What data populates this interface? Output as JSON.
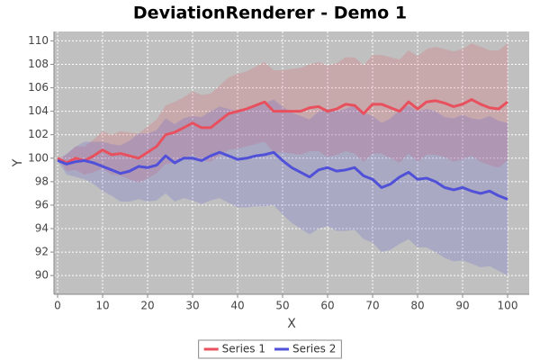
{
  "chart_data": {
    "type": "deviation",
    "title": "DeviationRenderer - Demo 1",
    "x_label": "X",
    "y_label": "Y",
    "x": [
      0,
      2,
      4,
      6,
      8,
      10,
      12,
      14,
      16,
      18,
      20,
      22,
      24,
      26,
      28,
      30,
      32,
      34,
      36,
      38,
      40,
      42,
      44,
      46,
      48,
      50,
      52,
      54,
      56,
      58,
      60,
      62,
      64,
      66,
      68,
      70,
      72,
      74,
      76,
      78,
      80,
      82,
      84,
      86,
      88,
      90,
      92,
      94,
      96,
      98,
      100
    ],
    "xlim": [
      -0.8,
      104.8
    ],
    "xticks": [
      0,
      10,
      20,
      30,
      40,
      50,
      60,
      70,
      80,
      90,
      100
    ],
    "ylim": [
      88.4,
      110.8
    ],
    "yticks": [
      90,
      92,
      94,
      96,
      98,
      100,
      102,
      104,
      106,
      108,
      110
    ],
    "grid": true,
    "legend": "bottom",
    "series": [
      {
        "name": "Series 1",
        "color": "#e8505e",
        "values": [
          100,
          99.6,
          100,
          99.8,
          100.2,
          100.7,
          100.3,
          100.4,
          100.2,
          100.0,
          100.5,
          101.0,
          102.0,
          102.2,
          102.6,
          103.0,
          102.6,
          102.6,
          103.2,
          103.8,
          104.0,
          104.2,
          104.5,
          104.8,
          104.0,
          104.0,
          104.0,
          104.0,
          104.3,
          104.4,
          104.0,
          104.2,
          104.6,
          104.5,
          103.8,
          104.6,
          104.6,
          104.3,
          104.0,
          104.8,
          104.2,
          104.8,
          104.9,
          104.7,
          104.4,
          104.6,
          105.0,
          104.6,
          104.3,
          104.2,
          104.8
        ],
        "lower": [
          100,
          98.9,
          99,
          98.6,
          98.8,
          99.1,
          98.6,
          98.5,
          98.2,
          97.9,
          98.3,
          98.7,
          99.5,
          99.6,
          100,
          100.3,
          99.8,
          99.7,
          100.2,
          100.7,
          100.8,
          101,
          101.2,
          101.4,
          100.5,
          100.5,
          100.4,
          100.3,
          100.6,
          100.6,
          100.1,
          100.3,
          100.6,
          100.4,
          99.7,
          100.4,
          100.4,
          100,
          99.6,
          100.4,
          99.7,
          100.3,
          100.3,
          100.1,
          99.7,
          99.9,
          100.2,
          99.7,
          99.4,
          99.2,
          99.8
        ],
        "upper": [
          100,
          100.3,
          101,
          101,
          101.6,
          102.3,
          102,
          102.3,
          102.2,
          102.1,
          102.7,
          103.3,
          104.5,
          104.8,
          105.2,
          105.7,
          105.4,
          105.5,
          106.2,
          106.9,
          107.2,
          107.4,
          107.8,
          108.2,
          107.5,
          107.5,
          107.6,
          107.7,
          108,
          108.2,
          107.9,
          108.1,
          108.6,
          108.6,
          107.9,
          108.8,
          108.8,
          108.6,
          108.4,
          109.2,
          108.7,
          109.3,
          109.5,
          109.3,
          109.1,
          109.3,
          109.8,
          109.5,
          109.2,
          109.2,
          109.8
        ]
      },
      {
        "name": "Series 2",
        "color": "#5050d8",
        "values": [
          99.8,
          99.5,
          99.7,
          99.8,
          99.6,
          99.3,
          99.0,
          98.7,
          98.9,
          99.3,
          99.2,
          99.4,
          100.2,
          99.6,
          100.0,
          100.0,
          99.8,
          100.2,
          100.5,
          100.2,
          99.9,
          100.0,
          100.2,
          100.3,
          100.5,
          99.8,
          99.2,
          98.8,
          98.4,
          99.0,
          99.2,
          98.9,
          99.0,
          99.2,
          98.5,
          98.2,
          97.5,
          97.8,
          98.4,
          98.8,
          98.2,
          98.3,
          98.0,
          97.5,
          97.3,
          97.5,
          97.2,
          97.0,
          97.2,
          96.8,
          96.5
        ],
        "lower": [
          99.8,
          98.6,
          98.4,
          98.2,
          97.8,
          97.2,
          96.8,
          96.3,
          96.3,
          96.5,
          96.3,
          96.4,
          97,
          96.3,
          96.6,
          96.4,
          96.1,
          96.4,
          96.6,
          96.2,
          95.8,
          95.8,
          95.9,
          95.9,
          96,
          95.2,
          94.5,
          94,
          93.5,
          94,
          94.2,
          93.8,
          93.8,
          93.9,
          93.1,
          92.8,
          92,
          92.2,
          92.7,
          93.1,
          92.4,
          92.4,
          92,
          91.5,
          91.2,
          91.3,
          91,
          90.7,
          90.8,
          90.4,
          90
        ],
        "upper": [
          99.8,
          100.4,
          101,
          101.4,
          101.4,
          101.4,
          101.2,
          101.1,
          101.5,
          102.1,
          102.1,
          102.4,
          103.4,
          102.9,
          103.4,
          103.6,
          103.5,
          104,
          104.4,
          104.2,
          104,
          104.2,
          104.5,
          104.7,
          105,
          104.4,
          103.9,
          103.6,
          103.3,
          104,
          104.2,
          104,
          104.2,
          104.5,
          103.9,
          103.6,
          103,
          103.4,
          104.1,
          104.5,
          104,
          104.2,
          104,
          103.5,
          103.4,
          103.7,
          103.4,
          103.3,
          103.6,
          103.2,
          103
        ]
      }
    ]
  }
}
